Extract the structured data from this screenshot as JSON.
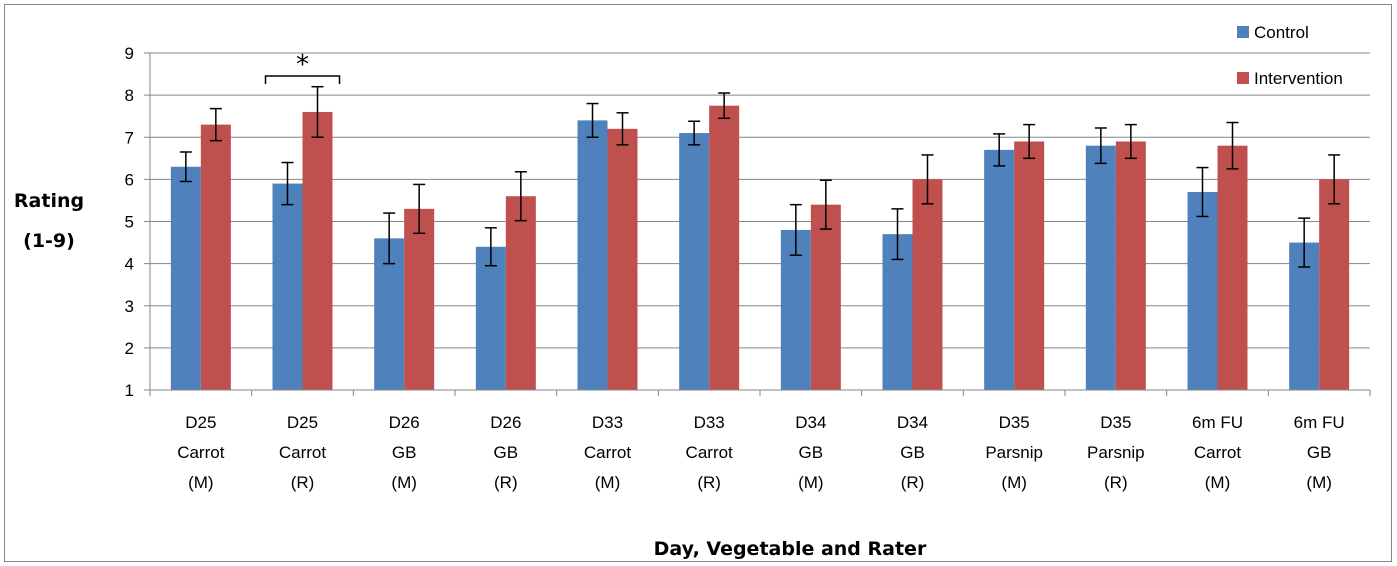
{
  "chart_data": {
    "type": "bar",
    "categories": [
      [
        "D25",
        "Carrot",
        "(M)"
      ],
      [
        "D25",
        "Carrot",
        "(R)"
      ],
      [
        "D26",
        "GB",
        "(M)"
      ],
      [
        "D26",
        "GB",
        "(R)"
      ],
      [
        "D33",
        "Carrot",
        "(M)"
      ],
      [
        "D33",
        "Carrot",
        "(R)"
      ],
      [
        "D34",
        "GB",
        "(M)"
      ],
      [
        "D34",
        "GB",
        "(R)"
      ],
      [
        "D35",
        "Parsnip",
        "(M)"
      ],
      [
        "D35",
        "Parsnip",
        "(R)"
      ],
      [
        "6m FU",
        "Carrot",
        "(M)"
      ],
      [
        "6m FU",
        "GB",
        "(M)"
      ]
    ],
    "series": [
      {
        "name": "Control",
        "color": "#4F81BD",
        "values": [
          6.3,
          5.9,
          4.6,
          4.4,
          7.4,
          7.1,
          4.8,
          4.7,
          6.7,
          6.8,
          5.7,
          4.5
        ],
        "error": [
          0.35,
          0.5,
          0.6,
          0.45,
          0.4,
          0.28,
          0.6,
          0.6,
          0.38,
          0.42,
          0.58,
          0.58
        ]
      },
      {
        "name": "Intervention",
        "color": "#C0504D",
        "values": [
          7.3,
          7.6,
          5.3,
          5.6,
          7.2,
          7.75,
          5.4,
          6.0,
          6.9,
          6.9,
          6.8,
          6.0
        ],
        "error": [
          0.38,
          0.6,
          0.58,
          0.58,
          0.38,
          0.3,
          0.58,
          0.58,
          0.4,
          0.4,
          0.55,
          0.58
        ]
      }
    ],
    "ylabel_lines": [
      "Rating",
      "(1-9)"
    ],
    "xlabel": "Day, Vegetable and Rater",
    "ylim": [
      1,
      9
    ],
    "yticks": [
      1,
      2,
      3,
      4,
      5,
      6,
      7,
      8,
      9
    ],
    "grid": true,
    "legend": "top-right",
    "annotation": {
      "text": "*",
      "category_index": 1
    }
  }
}
